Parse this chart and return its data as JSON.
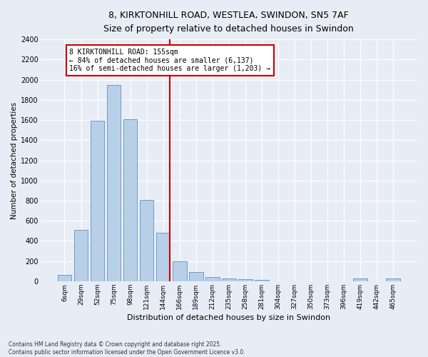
{
  "title_line1": "8, KIRKTONHILL ROAD, WESTLEA, SWINDON, SN5 7AF",
  "title_line2": "Size of property relative to detached houses in Swindon",
  "xlabel": "Distribution of detached houses by size in Swindon",
  "ylabel": "Number of detached properties",
  "categories": [
    "6sqm",
    "29sqm",
    "52sqm",
    "75sqm",
    "98sqm",
    "121sqm",
    "144sqm",
    "166sqm",
    "189sqm",
    "212sqm",
    "235sqm",
    "258sqm",
    "281sqm",
    "304sqm",
    "327sqm",
    "350sqm",
    "373sqm",
    "396sqm",
    "419sqm",
    "442sqm",
    "465sqm"
  ],
  "values": [
    60,
    510,
    1590,
    1950,
    1610,
    810,
    480,
    200,
    90,
    45,
    30,
    20,
    15,
    0,
    0,
    0,
    0,
    0,
    30,
    0,
    30
  ],
  "bar_color": "#b8cfe8",
  "bar_edge_color": "#6090c0",
  "vline_x": 6.42,
  "vline_color": "#cc0000",
  "annotation_title": "8 KIRKTONHILL ROAD: 155sqm",
  "annotation_line2": "← 84% of detached houses are smaller (6,137)",
  "annotation_line3": "16% of semi-detached houses are larger (1,203) →",
  "annotation_box_color": "#cc0000",
  "ylim": [
    0,
    2400
  ],
  "yticks": [
    0,
    200,
    400,
    600,
    800,
    1000,
    1200,
    1400,
    1600,
    1800,
    2000,
    2200,
    2400
  ],
  "footnote_line1": "Contains HM Land Registry data © Crown copyright and database right 2025.",
  "footnote_line2": "Contains public sector information licensed under the Open Government Licence v3.0.",
  "bg_color": "#e8edf5",
  "plot_bg_color": "#e8edf5",
  "grid_color": "#ffffff"
}
